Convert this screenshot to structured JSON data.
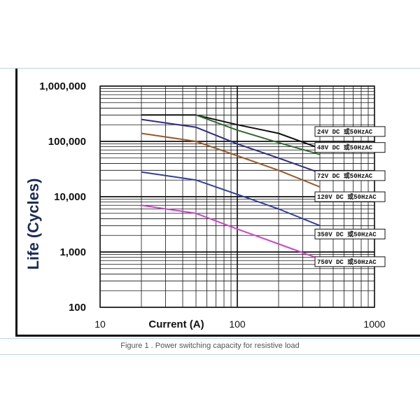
{
  "caption": "Figure 1 . Power switching capacity for resistive load",
  "chart_data": {
    "type": "line",
    "xlabel": "Current (A)",
    "ylabel": "Life (Cycles)",
    "xscale": "log",
    "yscale": "log",
    "xlim": [
      10,
      1000
    ],
    "ylim": [
      100,
      1000000
    ],
    "grid": true,
    "x_ticks": [
      {
        "value": 10,
        "label": "10"
      },
      {
        "value": 100,
        "label": "100"
      },
      {
        "value": 1000,
        "label": "1000"
      }
    ],
    "y_ticks": [
      {
        "value": 1000000,
        "label": "1,000,000"
      },
      {
        "value": 100000,
        "label": "100,000"
      },
      {
        "value": 10000,
        "label": "10,000"
      },
      {
        "value": 1000,
        "label": "1,000"
      },
      {
        "value": 100,
        "label": "100"
      }
    ],
    "series": [
      {
        "name": "24V DC 或50HzAC",
        "color": "#111111",
        "points": [
          [
            20,
            300000
          ],
          [
            50,
            300000
          ],
          [
            100,
            200000
          ],
          [
            200,
            140000
          ],
          [
            400,
            75000
          ]
        ]
      },
      {
        "name": "48V DC 或50HzAC",
        "color": "#2e6b2e",
        "points": [
          [
            50,
            300000
          ],
          [
            100,
            160000
          ],
          [
            200,
            95000
          ],
          [
            400,
            58000
          ]
        ]
      },
      {
        "name": "72V DC 或50HzAC",
        "color": "#2c2c8a",
        "points": [
          [
            20,
            250000
          ],
          [
            50,
            180000
          ],
          [
            100,
            90000
          ],
          [
            200,
            50000
          ],
          [
            400,
            27000
          ]
        ]
      },
      {
        "name": "120V DC 或50HzAC",
        "color": "#9a5a2a",
        "points": [
          [
            20,
            140000
          ],
          [
            50,
            100000
          ],
          [
            100,
            55000
          ],
          [
            200,
            30000
          ],
          [
            400,
            15000
          ]
        ]
      },
      {
        "name": "350V DC 或50HzAC",
        "color": "#3040a0",
        "points": [
          [
            20,
            28000
          ],
          [
            50,
            20000
          ],
          [
            100,
            11000
          ],
          [
            200,
            6000
          ],
          [
            400,
            3000
          ]
        ]
      },
      {
        "name": "750V DC 或50HzAC",
        "color": "#cc44cc",
        "points": [
          [
            20,
            7000
          ],
          [
            50,
            5000
          ],
          [
            100,
            2600
          ],
          [
            200,
            1400
          ],
          [
            400,
            750
          ]
        ]
      }
    ]
  }
}
